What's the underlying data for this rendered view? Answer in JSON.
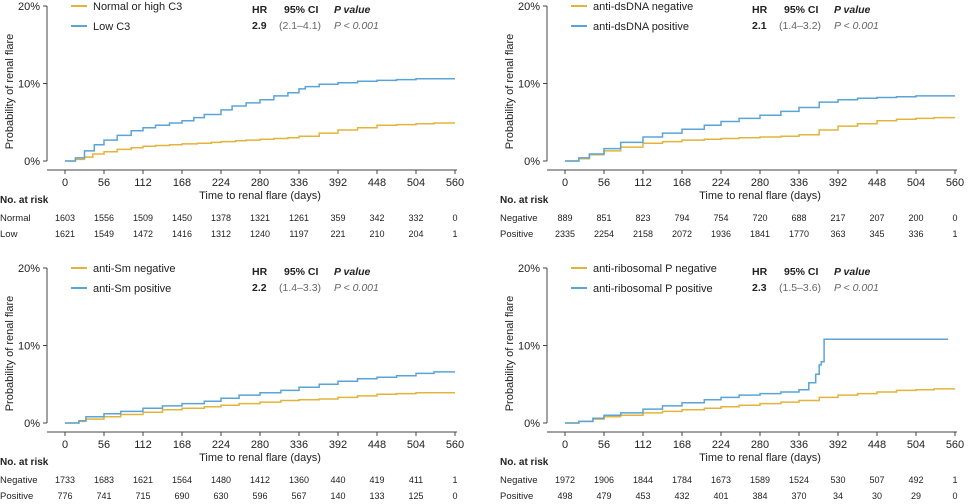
{
  "figure": {
    "x_ticks": [
      "0",
      "56",
      "112",
      "168",
      "224",
      "280",
      "336",
      "392",
      "448",
      "504",
      "560"
    ],
    "y_ticks": [
      "0%",
      "10%",
      "20%"
    ],
    "colors": {
      "low": "#e3b43b",
      "high": "#5aa5d6",
      "axis": "#444444",
      "text": "#222222"
    }
  },
  "chart_data": [
    {
      "type": "line",
      "subtype": "kaplan-meier-cumulative-incidence",
      "xlabel": "Time to renal flare (days)",
      "ylabel": "Probability of renal flare",
      "xlim": [
        0,
        560
      ],
      "ylim": [
        0,
        20
      ],
      "y_unit": "%",
      "legend_location": "top-left",
      "stats_header": {
        "hr": "HR",
        "ci": "95% CI",
        "p": "P value"
      },
      "stats": {
        "hr": "2.9",
        "ci": "(2.1–4.1)",
        "p": "P < 0.001"
      },
      "series": [
        {
          "name": "Normal or high C3",
          "color": "#e3b43b",
          "x": [
            0,
            15,
            28,
            40,
            56,
            75,
            95,
            112,
            130,
            150,
            168,
            190,
            210,
            224,
            245,
            260,
            280,
            300,
            320,
            336,
            365,
            392,
            420,
            448,
            476,
            504,
            530,
            560
          ],
          "y": [
            0,
            0.2,
            0.5,
            0.9,
            1.2,
            1.5,
            1.7,
            1.9,
            2.0,
            2.1,
            2.2,
            2.3,
            2.4,
            2.5,
            2.6,
            2.7,
            2.8,
            2.9,
            3.0,
            3.2,
            3.6,
            4.0,
            4.3,
            4.6,
            4.7,
            4.8,
            4.9,
            4.9
          ]
        },
        {
          "name": "Low C3",
          "color": "#5aa5d6",
          "x": [
            0,
            15,
            28,
            42,
            56,
            75,
            95,
            112,
            130,
            150,
            168,
            185,
            200,
            224,
            240,
            260,
            280,
            300,
            320,
            336,
            345,
            365,
            392,
            420,
            448,
            476,
            504,
            530,
            560
          ],
          "y": [
            0,
            0.4,
            1.3,
            2.1,
            2.7,
            3.3,
            3.9,
            4.3,
            4.6,
            4.9,
            5.2,
            5.6,
            6.0,
            6.6,
            7.1,
            7.5,
            7.9,
            8.4,
            8.8,
            9.3,
            9.6,
            9.9,
            10.1,
            10.3,
            10.4,
            10.5,
            10.6,
            10.6,
            10.6
          ]
        }
      ],
      "risk_table": {
        "header": "No. at risk",
        "rows": [
          {
            "label": "Normal",
            "values": [
              "1603",
              "1556",
              "1509",
              "1450",
              "1378",
              "1321",
              "1261",
              "359",
              "342",
              "332",
              "0"
            ]
          },
          {
            "label": "Low",
            "values": [
              "1621",
              "1549",
              "1472",
              "1416",
              "1312",
              "1240",
              "1197",
              "221",
              "210",
              "204",
              "1"
            ]
          }
        ]
      }
    },
    {
      "type": "line",
      "subtype": "kaplan-meier-cumulative-incidence",
      "xlabel": "Time to renal flare (days)",
      "ylabel": "Probability of renal flare",
      "xlim": [
        0,
        560
      ],
      "ylim": [
        0,
        20
      ],
      "y_unit": "%",
      "legend_location": "top-left",
      "stats_header": {
        "hr": "HR",
        "ci": "95% CI",
        "p": "P value"
      },
      "stats": {
        "hr": "2.1",
        "ci": "(1.4–3.2)",
        "p": "P < 0.001"
      },
      "series": [
        {
          "name": "anti-dsDNA negative",
          "color": "#e3b43b",
          "x": [
            0,
            20,
            35,
            56,
            80,
            112,
            140,
            168,
            200,
            224,
            250,
            280,
            310,
            336,
            365,
            392,
            420,
            448,
            476,
            504,
            530,
            560
          ],
          "y": [
            0,
            0.3,
            0.8,
            1.3,
            1.8,
            2.3,
            2.5,
            2.7,
            2.8,
            2.9,
            3.0,
            3.1,
            3.2,
            3.4,
            4.0,
            4.5,
            4.8,
            5.2,
            5.4,
            5.5,
            5.6,
            5.6
          ]
        },
        {
          "name": "anti-dsDNA positive",
          "color": "#5aa5d6",
          "x": [
            0,
            20,
            35,
            56,
            80,
            112,
            140,
            168,
            200,
            224,
            250,
            280,
            310,
            336,
            365,
            392,
            420,
            448,
            476,
            504,
            530,
            560
          ],
          "y": [
            0,
            0.4,
            0.9,
            1.6,
            2.4,
            3.1,
            3.6,
            4.1,
            4.6,
            5.1,
            5.5,
            5.9,
            6.4,
            6.9,
            7.6,
            7.9,
            8.1,
            8.2,
            8.3,
            8.4,
            8.4,
            8.4
          ]
        }
      ],
      "risk_table": {
        "header": "No. at risk",
        "rows": [
          {
            "label": "Negative",
            "values": [
              "889",
              "851",
              "823",
              "794",
              "754",
              "720",
              "688",
              "217",
              "207",
              "200",
              "0"
            ]
          },
          {
            "label": "Positive",
            "values": [
              "2335",
              "2254",
              "2158",
              "2072",
              "1936",
              "1841",
              "1770",
              "363",
              "345",
              "336",
              "1"
            ]
          }
        ]
      }
    },
    {
      "type": "line",
      "subtype": "kaplan-meier-cumulative-incidence",
      "xlabel": "Time to renal flare (days)",
      "ylabel": "Probability of renal flare",
      "xlim": [
        0,
        560
      ],
      "ylim": [
        0,
        20
      ],
      "y_unit": "%",
      "legend_location": "top-left",
      "stats_header": {
        "hr": "HR",
        "ci": "95% CI",
        "p": "P value"
      },
      "stats": {
        "hr": "2.2",
        "ci": "(1.4–3.3)",
        "p": "P < 0.001"
      },
      "series": [
        {
          "name": "anti-Sm negative",
          "color": "#e3b43b",
          "x": [
            0,
            20,
            30,
            56,
            80,
            112,
            140,
            168,
            200,
            224,
            250,
            280,
            310,
            336,
            365,
            392,
            420,
            448,
            476,
            504,
            530,
            560
          ],
          "y": [
            0,
            0.2,
            0.5,
            0.8,
            1.1,
            1.4,
            1.7,
            1.9,
            2.1,
            2.3,
            2.5,
            2.7,
            2.9,
            3.0,
            3.1,
            3.3,
            3.5,
            3.7,
            3.8,
            3.9,
            3.9,
            3.9
          ]
        },
        {
          "name": "anti-Sm positive",
          "color": "#5aa5d6",
          "x": [
            0,
            20,
            30,
            56,
            80,
            112,
            140,
            168,
            200,
            224,
            250,
            280,
            310,
            336,
            365,
            392,
            420,
            448,
            476,
            504,
            530,
            560
          ],
          "y": [
            0,
            0.3,
            0.8,
            1.2,
            1.5,
            1.9,
            2.2,
            2.5,
            2.8,
            3.2,
            3.6,
            3.9,
            4.2,
            4.6,
            5.0,
            5.4,
            5.7,
            5.9,
            6.1,
            6.4,
            6.6,
            6.6
          ]
        }
      ],
      "risk_table": {
        "header": "No. at risk",
        "rows": [
          {
            "label": "Negative",
            "values": [
              "1733",
              "1683",
              "1621",
              "1564",
              "1480",
              "1412",
              "1360",
              "440",
              "419",
              "411",
              "1"
            ]
          },
          {
            "label": "Positive",
            "values": [
              "776",
              "741",
              "715",
              "690",
              "630",
              "596",
              "567",
              "140",
              "133",
              "125",
              "0"
            ]
          }
        ]
      }
    },
    {
      "type": "line",
      "subtype": "kaplan-meier-cumulative-incidence",
      "xlabel": "Time to renal flare (days)",
      "ylabel": "Probability of renal flare",
      "xlim": [
        0,
        560
      ],
      "ylim": [
        0,
        20
      ],
      "y_unit": "%",
      "legend_location": "top-left",
      "stats_header": {
        "hr": "HR",
        "ci": "95% CI",
        "p": "P value"
      },
      "stats": {
        "hr": "2.3",
        "ci": "(1.5–3.6)",
        "p": "P < 0.001"
      },
      "series": [
        {
          "name": "anti-ribosomal P negative",
          "color": "#e3b43b",
          "x": [
            0,
            20,
            40,
            56,
            80,
            112,
            140,
            168,
            200,
            224,
            250,
            280,
            310,
            336,
            365,
            392,
            420,
            448,
            476,
            504,
            530,
            560
          ],
          "y": [
            0,
            0.2,
            0.5,
            0.8,
            1.0,
            1.3,
            1.5,
            1.7,
            1.9,
            2.1,
            2.3,
            2.5,
            2.7,
            2.9,
            3.3,
            3.6,
            3.8,
            4.0,
            4.2,
            4.3,
            4.4,
            4.4
          ]
        },
        {
          "name": "anti-ribosomal P positive",
          "color": "#5aa5d6",
          "x": [
            0,
            20,
            40,
            56,
            80,
            112,
            140,
            168,
            200,
            224,
            250,
            280,
            310,
            336,
            350,
            360,
            365,
            368,
            372,
            392,
            420,
            448,
            476,
            504,
            530,
            550
          ],
          "y": [
            0,
            0.2,
            0.6,
            1.0,
            1.3,
            1.8,
            2.2,
            2.6,
            3.0,
            3.3,
            3.6,
            3.8,
            4.0,
            4.3,
            5.2,
            6.3,
            7.5,
            7.9,
            10.8,
            10.8,
            10.8,
            10.8,
            10.8,
            10.8,
            10.8,
            10.8
          ]
        }
      ],
      "risk_table": {
        "header": "No. at risk",
        "rows": [
          {
            "label": "Negative",
            "values": [
              "1972",
              "1906",
              "1844",
              "1784",
              "1673",
              "1589",
              "1524",
              "530",
              "507",
              "492",
              "1"
            ]
          },
          {
            "label": "Positive",
            "values": [
              "498",
              "479",
              "453",
              "432",
              "401",
              "384",
              "370",
              "34",
              "30",
              "29",
              "0"
            ]
          }
        ]
      }
    }
  ]
}
